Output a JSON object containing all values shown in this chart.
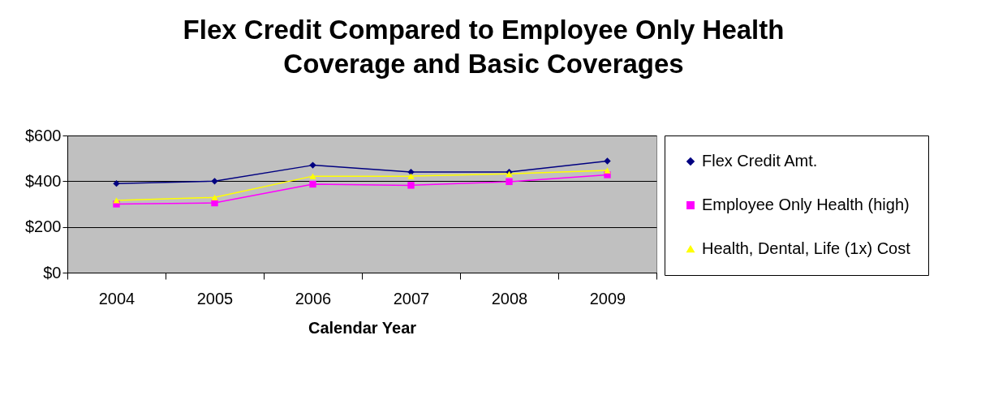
{
  "chart_data": {
    "type": "line",
    "title": "Flex Credit Compared to Employee Only Health Coverage and Basic Coverages",
    "xlabel": "Calendar Year",
    "categories": [
      "2004",
      "2005",
      "2006",
      "2007",
      "2008",
      "2009"
    ],
    "series": [
      {
        "name": "Flex Credit Amt.",
        "color": "#000080",
        "marker": "diamond",
        "values": [
          390,
          400,
          470,
          440,
          440,
          488
        ]
      },
      {
        "name": "Employee Only Health (high)",
        "color": "#ff00ff",
        "marker": "square",
        "values": [
          300,
          305,
          387,
          382,
          398,
          428
        ]
      },
      {
        "name": "Health, Dental, Life (1x) Cost",
        "color": "#ffff00",
        "marker": "triangle",
        "values": [
          316,
          329,
          422,
          422,
          432,
          447
        ]
      }
    ],
    "ylim": [
      0,
      600
    ],
    "yticks": [
      {
        "value": 0,
        "label": "$0"
      },
      {
        "value": 200,
        "label": "$200"
      },
      {
        "value": 400,
        "label": "$400"
      },
      {
        "value": 600,
        "label": "$600"
      }
    ],
    "grid": "y",
    "legend": "right"
  }
}
